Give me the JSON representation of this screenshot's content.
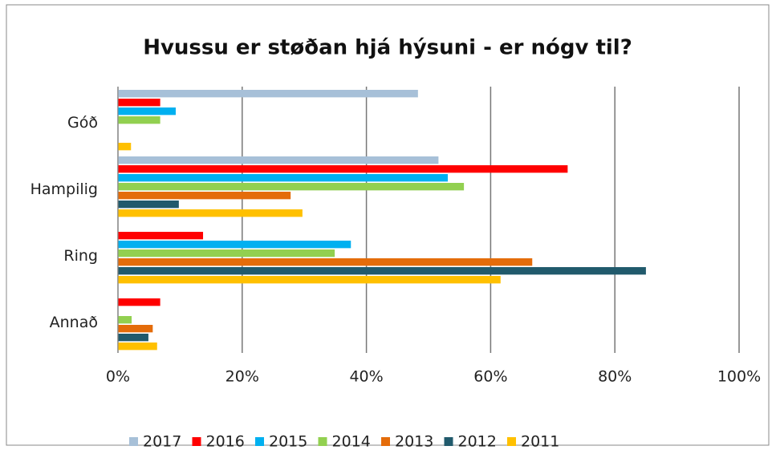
{
  "chart_data": {
    "type": "bar",
    "orientation": "horizontal",
    "title": "Hvussu er støðan hjá hýsuni - er nógv til?",
    "categories": [
      "Góð",
      "Hampilig",
      "Ring",
      "Annað"
    ],
    "series": [
      {
        "name": "2017",
        "color": "#a7c0d8",
        "values": [
          48.3,
          51.6,
          0,
          0
        ]
      },
      {
        "name": "2016",
        "color": "#ff0000",
        "values": [
          6.8,
          72.4,
          13.7,
          6.8
        ]
      },
      {
        "name": "2015",
        "color": "#00b0f0",
        "values": [
          9.3,
          53.1,
          37.5,
          0
        ]
      },
      {
        "name": "2014",
        "color": "#92d050",
        "values": [
          6.8,
          55.7,
          34.9,
          2.2
        ]
      },
      {
        "name": "2013",
        "color": "#e46c0a",
        "values": [
          0,
          27.8,
          66.7,
          5.6
        ]
      },
      {
        "name": "2012",
        "color": "#215a6c",
        "values": [
          0,
          9.8,
          85.0,
          4.9
        ]
      },
      {
        "name": "2011",
        "color": "#ffc000",
        "values": [
          2.1,
          29.7,
          61.6,
          6.3
        ]
      }
    ],
    "xlim": [
      0,
      100
    ],
    "xticks": [
      {
        "value": 0,
        "label": "0%"
      },
      {
        "value": 20,
        "label": "20%"
      },
      {
        "value": 40,
        "label": "40%"
      },
      {
        "value": 60,
        "label": "60%"
      },
      {
        "value": 80,
        "label": "80%"
      },
      {
        "value": 100,
        "label": "100%"
      }
    ],
    "grid": true,
    "legend": "bottom"
  }
}
